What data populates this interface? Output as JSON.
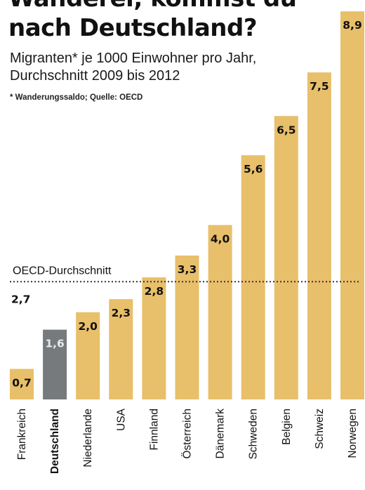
{
  "title": [
    "Wanderer, kommst du",
    "nach Deutschland?"
  ],
  "subtitle": [
    "Migranten* je 1000 Einwohner pro Jahr,",
    "Durchschnitt 2009 bis 2012"
  ],
  "footnote": "* Wanderungssaldo; Quelle: OECD",
  "colors": {
    "bar": "#e8bf6a",
    "highlight": "#777a7d",
    "reference_line": "#333333"
  },
  "chart_data": {
    "type": "bar",
    "categories": [
      "Frankreich",
      "Deutschland",
      "Niederlande",
      "USA",
      "Finnland",
      "Österreich",
      "Dänemark",
      "Schweden",
      "Belgien",
      "Schweiz",
      "Norwegen"
    ],
    "values": [
      0.7,
      1.6,
      2.0,
      2.3,
      2.8,
      3.3,
      4.0,
      5.6,
      6.5,
      7.5,
      8.9
    ],
    "value_labels": [
      "0,7",
      "1,6",
      "2,0",
      "2,3",
      "2,8",
      "3,3",
      "4,0",
      "5,6",
      "6,5",
      "7,5",
      "8,9"
    ],
    "highlight_category": "Deutschland",
    "reference_line": {
      "label": "OECD-Durchschnitt",
      "value": 2.7,
      "value_label": "2,7",
      "style": "dotted"
    },
    "title": "Wanderer, kommst du nach Deutschland?",
    "xlabel": "",
    "ylabel": "",
    "ylim": [
      0,
      9.0
    ],
    "grid": false,
    "legend": "none"
  }
}
